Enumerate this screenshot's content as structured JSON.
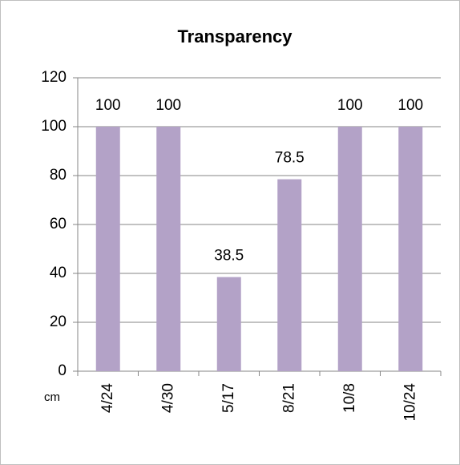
{
  "chart_data": {
    "type": "bar",
    "title": "Transparency",
    "y_label": "cm",
    "categories": [
      "4/24",
      "4/30",
      "5/17",
      "8/21",
      "10/8",
      "10/24"
    ],
    "values": [
      100,
      100,
      38.5,
      78.5,
      100,
      100
    ],
    "color": "#b3a2c7",
    "ylim": [
      0,
      120
    ],
    "yticks": [
      0,
      20,
      40,
      60,
      80,
      100,
      120
    ],
    "grid": true
  }
}
